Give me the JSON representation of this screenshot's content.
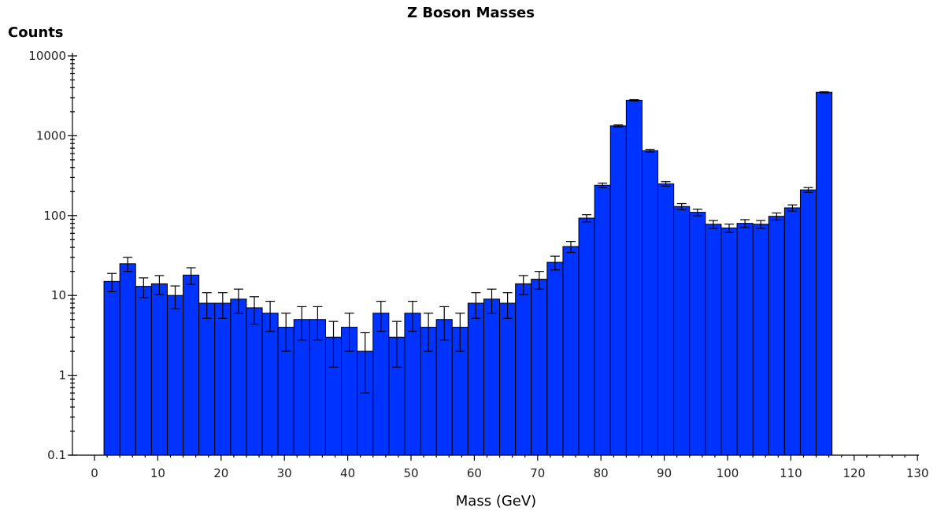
{
  "chart_data": {
    "type": "bar",
    "title": "Z Boson Masses",
    "xlabel": "Mass (GeV)",
    "ylabel": "Counts",
    "xlim": [
      0,
      130
    ],
    "ylim": [
      0.1,
      10000
    ],
    "yscale": "log",
    "bin_width": 2.5,
    "x_start": 1.5,
    "x_ticks": [
      "0",
      "10",
      "20",
      "30",
      "40",
      "50",
      "60",
      "70",
      "80",
      "90",
      "100",
      "110",
      "120",
      "130"
    ],
    "y_ticks": [
      "0.1",
      "1",
      "10",
      "100",
      "1000",
      "10000"
    ],
    "bar_color": "#0033ff",
    "error_bars": true,
    "values": [
      15,
      25,
      13,
      14,
      10,
      18,
      8,
      8,
      9,
      7,
      6,
      4,
      5,
      5,
      3,
      4,
      2,
      6,
      3,
      6,
      4,
      5,
      4,
      8,
      9,
      8,
      14,
      16,
      26,
      41,
      93,
      240,
      1330,
      2780,
      650,
      250,
      130,
      110,
      78,
      70,
      80,
      78,
      98,
      125,
      210,
      3500
    ]
  }
}
